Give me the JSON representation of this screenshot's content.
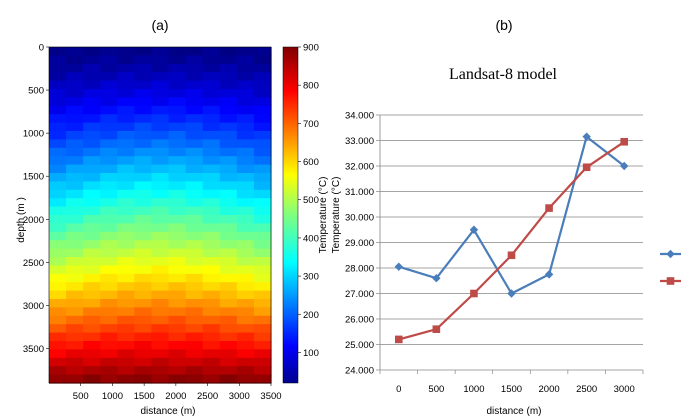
{
  "chart_data": [
    {
      "panel": "(a)",
      "type": "heatmap",
      "title": "",
      "xlabel": "distance (m)",
      "ylabel": "depth (m )",
      "xlim": [
        0,
        3500
      ],
      "ylim": [
        0,
        3900
      ],
      "y_inverted": true,
      "x_ticks": [
        "500",
        "1000",
        "1500",
        "2000",
        "2500",
        "3000",
        "3500"
      ],
      "y_ticks": [
        "0",
        "500",
        "1000",
        "1500",
        "2000",
        "2500",
        "3000",
        "3500"
      ],
      "colorbar": {
        "label_lines": [
          "Temperature (°C)",
          "Temperature (°C)"
        ],
        "range": [
          20,
          900
        ],
        "ticks": [
          "100",
          "200",
          "300",
          "400",
          "500",
          "600",
          "700",
          "800",
          "900"
        ],
        "colormap": "jet"
      },
      "grid": {
        "rows": 40,
        "cols": 13,
        "surface_temperature": 25,
        "bottom_temperature": 900,
        "profile": "temperature increases with depth; slightly warmer in the middle columns at mid depth"
      }
    },
    {
      "panel": "(b)",
      "type": "line",
      "title": "Landsat-8 model",
      "xlabel": "distance (m)",
      "ylabel": "",
      "categories": [
        "0",
        "500",
        "1000",
        "1500",
        "2000",
        "2500",
        "3000"
      ],
      "ylim": [
        24,
        34
      ],
      "y_ticks": [
        "24.000",
        "25.000",
        "26.000",
        "27.000",
        "28.000",
        "29.000",
        "30.000",
        "31.000",
        "32.000",
        "33.000",
        "34.000"
      ],
      "legend_position": "right",
      "series": [
        {
          "values": [
            28.05,
            27.6,
            29.5,
            27.0,
            27.75,
            33.15,
            32.0
          ],
          "color": "#4a7ebb",
          "marker": "diamond"
        },
        {
          "values": [
            25.2,
            25.6,
            27.0,
            28.5,
            30.35,
            31.95,
            32.95
          ],
          "color": "#be4b48",
          "marker": "square"
        }
      ]
    }
  ]
}
